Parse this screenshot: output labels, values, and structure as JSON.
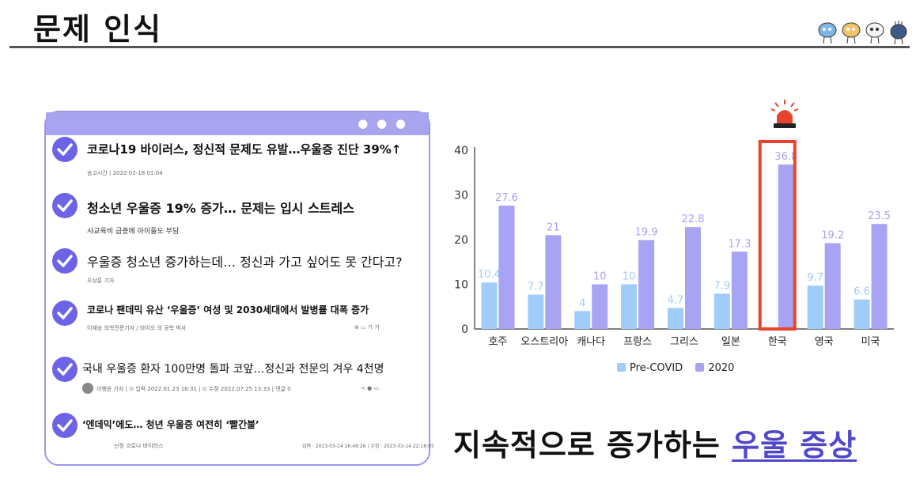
{
  "header": {
    "title": "문제 인식"
  },
  "news": [
    {
      "headline": "코로나19 바이러스, 정신적 문제도 유발…우울증 진단 39%↑",
      "meta": "송고시간 | 2022-02-18 01:04",
      "icons": ""
    },
    {
      "headline": "청소년 우울증 19% 증가… 문제는 입시 스트레스",
      "meta": "사교육비 급증에 아이들도 부담",
      "icons": ""
    },
    {
      "headline": "우울증 청소년 증가하는데… 정신과 가고 싶어도 못 간다고?",
      "meta": "오상훈 기자",
      "icons": ""
    },
    {
      "headline": "코로나 팬데믹 유산 ‘우울증’ 여성 및 2030세대에서 발병률 대폭 증가",
      "meta": "이재승 의학전문기자 / 바이오 의 공학 박사",
      "icons": "⊕ ▭ 가 가"
    },
    {
      "headline": "국내 우울증 환자 100만명 돌파 코앞…정신과 전문의 겨우 4천명",
      "meta": "이행윤 기자 | ⊙ 입력 2022.01.23 16:31 | ⊙ 수정 2022.07.25 13:33 | 댓글 0",
      "icons": "< ● ▭"
    },
    {
      "headline": "‘엔데믹’에도… 청년 우울증 여전히 ‘빨간불’",
      "meta": "신정 코로나 바이러스",
      "meta2": "입력 · 2023-03-14 16:49:26 | 수정 · 2023-03-14 22:16:05",
      "icons": ""
    }
  ],
  "chart_data": {
    "type": "bar",
    "categories": [
      "호주",
      "오스트리아",
      "캐나다",
      "프랑스",
      "그리스",
      "일본",
      "한국",
      "영국",
      "미국"
    ],
    "series": [
      {
        "name": "Pre-COVID",
        "values": [
          10.4,
          7.7,
          4,
          10,
          4.7,
          7.9,
          null,
          9.7,
          6.6
        ],
        "color": "#9fccf9"
      },
      {
        "name": "2020",
        "values": [
          27.6,
          21,
          10,
          19.9,
          22.8,
          17.3,
          36.8,
          19.2,
          23.5
        ],
        "color": "#a8a3f2"
      }
    ],
    "ylim": [
      0,
      40
    ],
    "yticks": [
      0,
      10,
      20,
      30,
      40
    ],
    "highlight_category": "한국",
    "highlight_color": "#e8442d",
    "legend_position": "bottom",
    "grid": false
  },
  "conclusion": {
    "prefix": "지속적으로 증가하는",
    "highlight": "우울 증상"
  },
  "colors": {
    "accent": "#6c63e6",
    "card_border": "#9c97ea",
    "card_header": "#a8a4f0",
    "alert": "#e8442d"
  }
}
